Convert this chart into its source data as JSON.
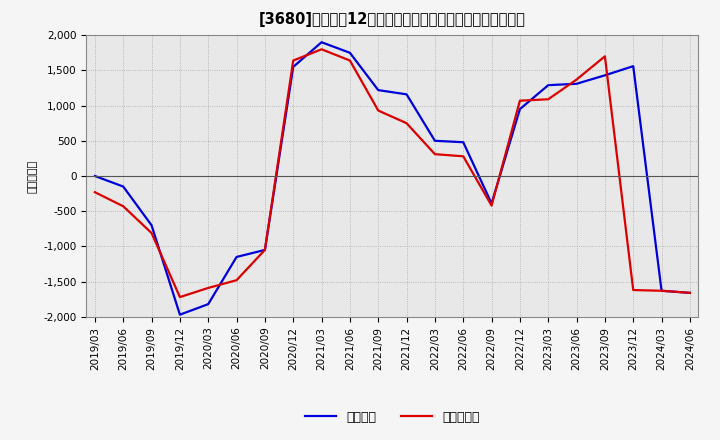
{
  "title": "[3680]　利益だ12か月移動合計の対前年同期増減額の推移",
  "ylabel": "（百万円）",
  "ylim": [
    -2000,
    2000
  ],
  "yticks": [
    -2000,
    -1500,
    -1000,
    -500,
    0,
    500,
    1000,
    1500,
    2000
  ],
  "legend_labels": [
    "経常利益",
    "当期純利益"
  ],
  "line_colors": [
    "#0000dd",
    "#dd0000"
  ],
  "background_color": "#f0f0f0",
  "plot_bg_color": "#e8e8e8",
  "grid_color": "#aaaaaa",
  "dates": [
    "2019/03",
    "2019/06",
    "2019/09",
    "2019/12",
    "2020/03",
    "2020/06",
    "2020/09",
    "2020/12",
    "2021/03",
    "2021/06",
    "2021/09",
    "2021/12",
    "2022/03",
    "2022/06",
    "2022/09",
    "2022/12",
    "2023/03",
    "2023/06",
    "2023/09",
    "2023/12",
    "2024/03",
    "2024/06"
  ],
  "keijo_rieki": [
    0,
    -150,
    -700,
    -1970,
    -1820,
    -1150,
    -1050,
    1550,
    1900,
    1750,
    1220,
    1160,
    500,
    480,
    -390,
    950,
    1290,
    1310,
    1430,
    1560,
    -1630,
    -1660
  ],
  "touki_jun_rieki": [
    -230,
    -430,
    -810,
    -1720,
    -1590,
    -1480,
    -1050,
    1640,
    1800,
    1640,
    930,
    750,
    310,
    280,
    -420,
    1070,
    1090,
    1370,
    1700,
    -1620,
    -1630,
    -1660
  ],
  "title_fontsize": 10.5,
  "tick_fontsize": 7.5,
  "legend_fontsize": 9
}
